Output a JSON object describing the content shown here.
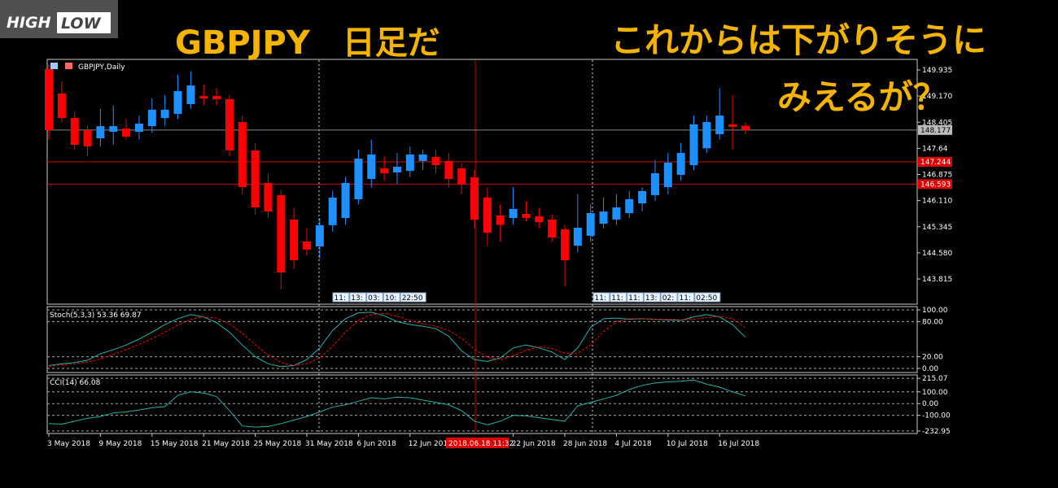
{
  "logo": {
    "high": "HIGH",
    "low": "LOW"
  },
  "overlay": {
    "title": "GBPJPY　日足だ",
    "comment_1": "これからは下がりそうに",
    "comment_2": "みえるが？"
  },
  "chart_data": [
    {
      "type": "candlestick",
      "label": "GBPJPY,Daily",
      "up_color": "#1e90ff",
      "down_color": "#ff0000",
      "categories": [
        "3 May 2018",
        null,
        null,
        null,
        "9 May 2018",
        null,
        null,
        null,
        "15 May 2018",
        null,
        null,
        null,
        "21 May 2018",
        null,
        null,
        null,
        "25 May 2018",
        null,
        null,
        null,
        "31 May 2018",
        null,
        null,
        null,
        "6 Jun 2018",
        null,
        null,
        null,
        "12 Jun 2018",
        null,
        null,
        null,
        null,
        null,
        null,
        null,
        "22 Jun 2018",
        null,
        null,
        null,
        "28 Jun 2018",
        null,
        null,
        null,
        "4 Jul 2018",
        null,
        null,
        null,
        "10 Jul 2018",
        null,
        null,
        null,
        "16 Jul 2018",
        null,
        null
      ],
      "open": [
        149.96,
        149.245,
        148.53,
        148.17,
        147.935,
        148.125,
        148.22,
        148.125,
        148.29,
        148.53,
        148.65,
        148.935,
        149.17,
        149.17,
        149.08,
        148.41,
        147.58,
        146.625,
        146.27,
        145.555,
        144.91,
        144.77,
        145.39,
        145.6,
        146.15,
        146.745,
        147.055,
        146.935,
        146.98,
        147.27,
        147.39,
        147.27,
        147.055,
        146.79,
        146.2,
        145.675,
        145.6,
        145.72,
        145.65,
        145.555,
        145.27,
        144.79,
        145.08,
        145.435,
        145.555,
        145.745,
        146.03,
        146.27,
        146.505,
        146.865,
        147.15,
        147.64,
        148.055,
        148.34,
        148.3
      ],
      "high": [
        150.1,
        149.6,
        148.7,
        148.3,
        148.8,
        148.9,
        148.5,
        148.6,
        149.1,
        149.2,
        149.8,
        149.9,
        149.5,
        149.4,
        149.2,
        148.6,
        147.8,
        146.9,
        146.4,
        145.9,
        145.3,
        145.6,
        146.4,
        146.8,
        147.6,
        147.9,
        147.4,
        147.5,
        147.7,
        147.6,
        147.6,
        147.5,
        147.2,
        147.0,
        146.5,
        146.0,
        146.5,
        146.1,
        145.9,
        145.7,
        145.4,
        146.3,
        146.0,
        146.2,
        146.3,
        146.4,
        146.5,
        147.3,
        147.5,
        147.8,
        148.6,
        148.6,
        149.4,
        149.2,
        148.4
      ],
      "low": [
        147.9,
        148.4,
        147.6,
        147.4,
        147.7,
        147.75,
        147.9,
        147.9,
        148.1,
        148.3,
        148.5,
        148.8,
        148.9,
        148.9,
        147.4,
        146.3,
        145.7,
        145.6,
        143.5,
        144.1,
        144.5,
        144.4,
        145.2,
        145.4,
        146.0,
        146.5,
        146.7,
        146.6,
        146.8,
        147.0,
        146.9,
        146.5,
        146.3,
        145.3,
        144.8,
        144.9,
        145.4,
        145.5,
        145.3,
        144.9,
        143.6,
        144.6,
        144.9,
        145.3,
        145.4,
        145.6,
        145.8,
        146.1,
        146.3,
        146.7,
        147.0,
        147.5,
        147.9,
        147.6,
        148.05
      ],
      "close": [
        148.17,
        148.53,
        147.745,
        147.7,
        148.29,
        148.29,
        147.98,
        148.365,
        148.77,
        148.77,
        149.315,
        149.48,
        149.1,
        149.08,
        147.58,
        146.505,
        145.91,
        145.79,
        144.005,
        144.365,
        144.675,
        145.39,
        146.2,
        146.625,
        147.34,
        147.46,
        146.91,
        147.1,
        147.46,
        147.46,
        147.15,
        146.745,
        146.58,
        145.555,
        145.17,
        145.4,
        145.865,
        145.6,
        145.48,
        145.03,
        144.365,
        145.315,
        145.745,
        145.79,
        145.91,
        146.15,
        146.39,
        146.91,
        147.22,
        147.505,
        148.34,
        148.41,
        148.6,
        148.27,
        148.177
      ],
      "ylim": [
        143.077,
        150.245
      ],
      "yticks": [
        149.935,
        {
          "value": 149.17,
          "label": "149.170"
        },
        148.405,
        147.64,
        146.875,
        {
          "value": 146.11,
          "label": "146.110"
        },
        145.345,
        {
          "value": 144.58,
          "label": "144.580"
        },
        143.815
      ],
      "current_price": 148.177,
      "levels": [
        147.244,
        146.593
      ],
      "crosshair_time": "2018.06.18 11:32",
      "time_tags_1": [
        "11:",
        "13:",
        "03:",
        "10:",
        "22:50"
      ],
      "time_tags_2": [
        "11:",
        "11:",
        "11:",
        "13:",
        "02:",
        "11:",
        "02:50"
      ]
    },
    {
      "type": "line",
      "label": "Stoch(5,3,3) 53.36 69.87",
      "ylim": [
        -7,
        105.6
      ],
      "yticks": [
        {
          "value": 100,
          "label": "100.00"
        },
        {
          "value": 80,
          "label": "80.00"
        },
        {
          "value": 20,
          "label": "20.00"
        },
        {
          "value": 0,
          "label": "0.00"
        }
      ],
      "series": [
        {
          "color": "#20b2aa",
          "dash": false,
          "values": [
            5,
            8,
            10,
            14,
            25,
            32,
            40,
            50,
            62,
            75,
            85,
            92,
            88,
            78,
            62,
            40,
            20,
            8,
            3,
            5,
            15,
            35,
            65,
            85,
            95,
            96,
            90,
            80,
            75,
            72,
            68,
            55,
            30,
            15,
            12,
            18,
            35,
            40,
            35,
            28,
            15,
            35,
            70,
            85,
            86,
            84,
            85,
            84,
            83,
            82,
            88,
            92,
            88,
            75,
            53.36
          ]
        },
        {
          "color": "#ff0000",
          "dash": true,
          "values": [
            4,
            6,
            8,
            11,
            16,
            24,
            32,
            41,
            51,
            62,
            74,
            84,
            88,
            86,
            76,
            60,
            41,
            23,
            10,
            5,
            8,
            18,
            38,
            62,
            82,
            92,
            94,
            89,
            82,
            76,
            72,
            65,
            51,
            33,
            19,
            15,
            22,
            31,
            37,
            34,
            26,
            26,
            40,
            63,
            80,
            85,
            85,
            84,
            84,
            83,
            84,
            87,
            89,
            85,
            69.87
          ]
        }
      ]
    },
    {
      "type": "line",
      "label": "CCI(14) 66.08",
      "ylim": [
        -254.3,
        243.5
      ],
      "yticks": [
        {
          "value": 215.07,
          "label": "215.07"
        },
        {
          "value": 100,
          "label": "100.00"
        },
        {
          "value": 0,
          "label": "0.00"
        },
        {
          "value": -100,
          "label": "-100.00"
        },
        {
          "value": -232.95,
          "label": "-232.95"
        }
      ],
      "series": [
        {
          "color": "#20b2aa",
          "dash": false,
          "values": [
            -170,
            -175,
            -150,
            -125,
            -110,
            -80,
            -70,
            -55,
            -35,
            -25,
            70,
            100,
            90,
            60,
            -60,
            -190,
            -200,
            -195,
            -170,
            -140,
            -110,
            -70,
            -30,
            -10,
            20,
            50,
            40,
            55,
            50,
            30,
            10,
            -10,
            -60,
            -150,
            -180,
            -150,
            -100,
            -105,
            -120,
            -135,
            -150,
            -20,
            10,
            40,
            70,
            120,
            155,
            175,
            185,
            190,
            200,
            165,
            140,
            100,
            66.08
          ]
        }
      ]
    }
  ]
}
